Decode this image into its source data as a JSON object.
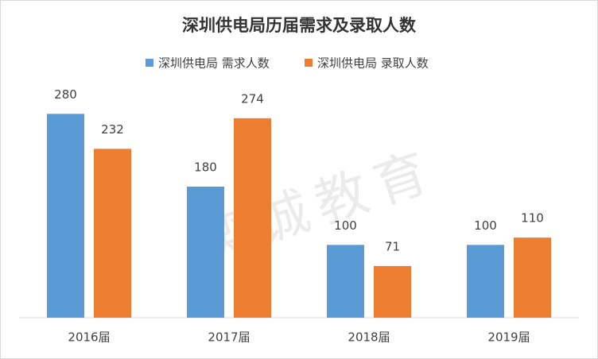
{
  "chart_data": {
    "type": "bar",
    "title": "深圳供电局历届需求及录取人数",
    "categories": [
      "2016届",
      "2017届",
      "2018届",
      "2019届"
    ],
    "series": [
      {
        "name": "深圳供电局 需求人数",
        "color": "#5b9bd5",
        "values": [
          280,
          180,
          100,
          100
        ]
      },
      {
        "name": "深圳供电局 录取人数",
        "color": "#ed7d31",
        "values": [
          232,
          274,
          71,
          110
        ]
      }
    ],
    "ylim": [
      0,
      300
    ],
    "legend": "top",
    "watermark": "奕诚教育"
  }
}
